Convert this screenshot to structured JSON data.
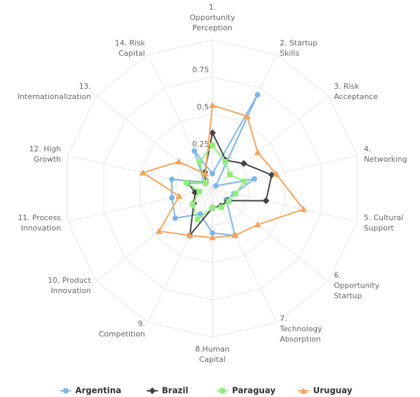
{
  "chart_data": {
    "type": "radar",
    "categories": [
      "1.\nOpportunity\nPerception",
      "2. Startup\nSkills",
      "3. Risk\nAcceptance",
      "4.\nNetworking",
      "5. Cultural\nSupport",
      "6.\nOpportunity\nStartup",
      "7.\nTechnology\nAbsorption",
      "8.Human\nCapital",
      "9.\nCompetition",
      "10. Product\nInnovation",
      "11. Process\nInnovation",
      "12. High\nGrowth",
      "13.\nInternationalization",
      "14. Risk\nCapital"
    ],
    "series": [
      {
        "name": "Argentina",
        "color": "#7cb5ec",
        "marker": "circle",
        "values": [
          0.1,
          0.7,
          0.03,
          0.29,
          0.15,
          0.12,
          0.35,
          0.3,
          0.19,
          0.32,
          0.28,
          0.28,
          0.07,
          0.28
        ]
      },
      {
        "name": "Brazil",
        "color": "#434348",
        "marker": "diamond",
        "values": [
          0.375,
          0.21,
          0.27,
          0.41,
          0.37,
          0.13,
          0.13,
          0.13,
          0.35,
          0.16,
          0.12,
          0.17,
          0.06,
          0.12
        ]
      },
      {
        "name": "Paraguay",
        "color": "#90ed7d",
        "marker": "square",
        "values": [
          0.29,
          0.2,
          0.15,
          0.22,
          0.16,
          0.14,
          0.14,
          0.13,
          0.23,
          0.17,
          0.09,
          0.18,
          0.06,
          0.2
        ]
      },
      {
        "name": "Uruguay",
        "color": "#f7a35c",
        "marker": "triangle",
        "values": [
          0.56,
          0.54,
          0.39,
          0.44,
          0.63,
          0.39,
          0.35,
          0.33,
          0.35,
          0.46,
          0.23,
          0.48,
          0.29,
          0.11
        ]
      }
    ],
    "ylim": [
      0,
      1
    ],
    "yticks": [
      0,
      0.25,
      0.5,
      0.75
    ],
    "grid": true,
    "legend": "bottom"
  }
}
